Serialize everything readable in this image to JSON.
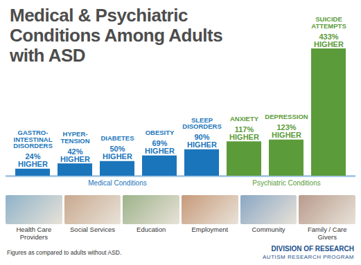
{
  "chart_data": {
    "type": "bar",
    "title": "Medical & Psychiatric Conditions Among Adults with ASD",
    "categories": [
      "GASTRO-INTESTINAL DISORDERS",
      "HYPER-TENSION",
      "DIABETES",
      "OBESITY",
      "SLEEP DISORDERS",
      "ANXIETY",
      "DEPRESSION",
      "SUICIDE ATTEMPTS"
    ],
    "values": [
      24,
      42,
      50,
      69,
      90,
      117,
      123,
      433
    ],
    "value_labels": [
      "24% HIGHER",
      "42% HIGHER",
      "50% HIGHER",
      "69% HIGHER",
      "90% HIGHER",
      "117% HIGHER",
      "123% HIGHER",
      "433% HIGHER"
    ],
    "data_labels": true,
    "groups": [
      "Medical Conditions",
      "Medical Conditions",
      "Medical Conditions",
      "Medical Conditions",
      "Medical Conditions",
      "Psychiatric Conditions",
      "Psychiatric Conditions",
      "Psychiatric Conditions"
    ],
    "colors": [
      "#1b75bb",
      "#1b75bb",
      "#1b75bb",
      "#1b75bb",
      "#1b75bb",
      "#5b9b3a",
      "#5b9b3a",
      "#5b9b3a"
    ],
    "ylim": [
      0,
      433
    ],
    "tick_labels": false,
    "grid": false,
    "panels": [
      "Health Care Providers",
      "Social Services",
      "Education",
      "Employment",
      "Community",
      "Family / Care Givers"
    ],
    "note": "Figures as compared to adults without ASD.",
    "credit": [
      "DIVISION OF RESEARCH",
      "AUTISM RESEARCH PROGRAM"
    ]
  }
}
